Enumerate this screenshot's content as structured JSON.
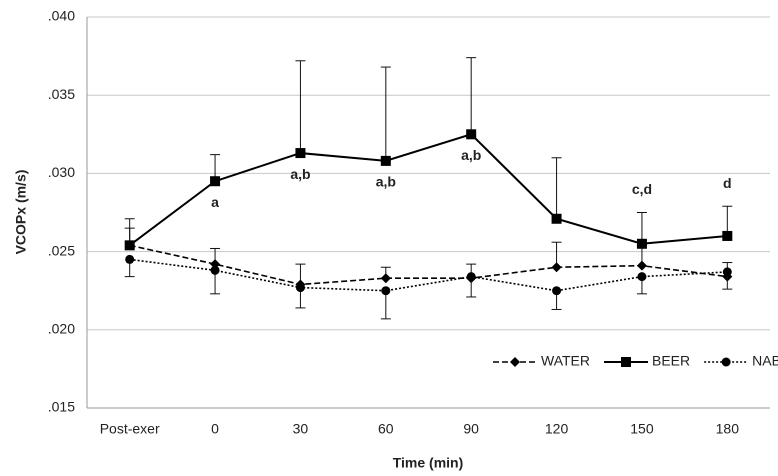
{
  "chart_data": {
    "type": "line",
    "xlabel": "Time (min)",
    "ylabel": "VCOPx (m/s)",
    "categories": [
      "Post-exer",
      "0",
      "30",
      "60",
      "90",
      "120",
      "150",
      "180"
    ],
    "series": [
      {
        "name": "WATER",
        "color": "#000000",
        "style": "dashed",
        "marker": "diamond",
        "values": [
          0.0254,
          0.0242,
          0.0229,
          0.0233,
          0.0233,
          0.024,
          0.0241,
          0.0234
        ],
        "errors": [
          0.0011,
          0.001,
          0.0013,
          0.0007,
          0.0009,
          0.0016,
          0.0013,
          0.0009
        ]
      },
      {
        "name": "BEER",
        "color": "#000000",
        "style": "solid",
        "marker": "square",
        "values": [
          0.0254,
          0.0295,
          0.0313,
          0.0308,
          0.0325,
          0.0271,
          0.0255,
          0.026
        ],
        "errors": [
          0.0017,
          0.0017,
          0.0059,
          0.006,
          0.0049,
          0.0039,
          0.002,
          0.0019
        ]
      },
      {
        "name": "NAB",
        "color": "#000000",
        "style": "dotted",
        "marker": "circle",
        "values": [
          0.0245,
          0.0238,
          0.0227,
          0.0225,
          0.0234,
          0.0225,
          0.0234,
          0.0237
        ],
        "errors": [
          0.0011,
          0.0015,
          0.0013,
          0.0018,
          0.0013,
          0.0012,
          0.0011,
          0.0011
        ]
      }
    ],
    "annotations": [
      null,
      "a",
      "a,b",
      "a,b",
      "a,b",
      null,
      "c,d",
      "d"
    ],
    "ylim": [
      0.015,
      0.04
    ],
    "yticks": [
      {
        "value": 0.015,
        "label": ".015"
      },
      {
        "value": 0.02,
        "label": ".020"
      },
      {
        "value": 0.025,
        "label": ".025"
      },
      {
        "value": 0.03,
        "label": ".030"
      },
      {
        "value": 0.035,
        "label": ".035"
      },
      {
        "value": 0.04,
        "label": ".040"
      }
    ],
    "grid": true,
    "legend": "lower right"
  }
}
